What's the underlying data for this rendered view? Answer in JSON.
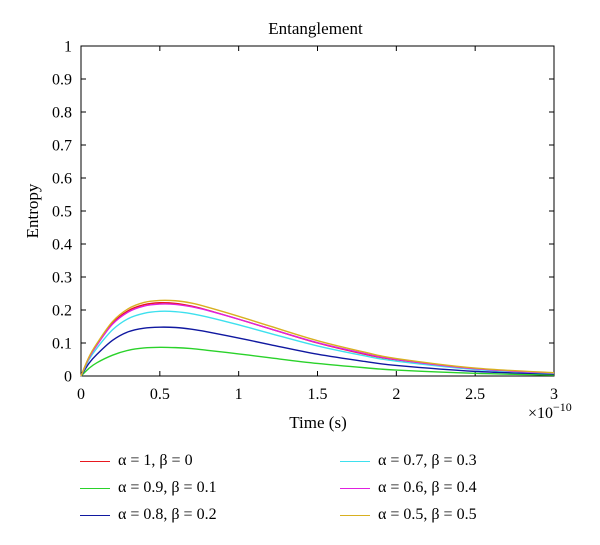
{
  "chart_data": {
    "type": "line",
    "title": "Entanglement",
    "xlabel": "Time (s)",
    "ylabel": "Entropy",
    "x_multiplier": "×10",
    "x_multiplier_exp": "−10",
    "xlim": [
      0,
      3
    ],
    "ylim": [
      0,
      1
    ],
    "grid": false,
    "legend_position": "bottom",
    "xticks": [
      "0",
      "0.5",
      "1",
      "1.5",
      "2",
      "2.5",
      "3"
    ],
    "yticks": [
      "0",
      "0.1",
      "0.2",
      "0.3",
      "0.4",
      "0.5",
      "0.6",
      "0.7",
      "0.8",
      "0.9",
      "1"
    ],
    "x": [
      0,
      0.05,
      0.1,
      0.2,
      0.3,
      0.4,
      0.5,
      0.6,
      0.7,
      0.8,
      1.0,
      1.2,
      1.5,
      1.8,
      2.0,
      2.5,
      3.0
    ],
    "series": [
      {
        "name": "α = 1, β = 0",
        "color": "#e8181f",
        "values": [
          0,
          0.055,
          0.095,
          0.16,
          0.198,
          0.216,
          0.222,
          0.22,
          0.212,
          0.2,
          0.172,
          0.143,
          0.1,
          0.066,
          0.049,
          0.022,
          0.009
        ]
      },
      {
        "name": "α = 0.9, β = 0.1",
        "color": "#2ad22a",
        "values": [
          0,
          0.023,
          0.04,
          0.063,
          0.078,
          0.085,
          0.087,
          0.086,
          0.083,
          0.078,
          0.067,
          0.055,
          0.038,
          0.025,
          0.018,
          0.008,
          0.003
        ]
      },
      {
        "name": "α = 0.8, β = 0.2",
        "color": "#1018a0",
        "values": [
          0,
          0.038,
          0.065,
          0.108,
          0.134,
          0.145,
          0.148,
          0.147,
          0.142,
          0.134,
          0.115,
          0.095,
          0.066,
          0.044,
          0.032,
          0.014,
          0.006
        ]
      },
      {
        "name": "α = 0.7, β = 0.3",
        "color": "#3ee0ee",
        "values": [
          0,
          0.049,
          0.084,
          0.14,
          0.174,
          0.19,
          0.196,
          0.195,
          0.189,
          0.179,
          0.155,
          0.129,
          0.091,
          0.061,
          0.045,
          0.02,
          0.008
        ]
      },
      {
        "name": "α = 0.6, β = 0.4",
        "color": "#e020e0",
        "values": [
          0,
          0.054,
          0.093,
          0.157,
          0.194,
          0.212,
          0.218,
          0.217,
          0.21,
          0.199,
          0.172,
          0.143,
          0.101,
          0.068,
          0.05,
          0.022,
          0.009
        ]
      },
      {
        "name": "α = 0.5, β = 0.5",
        "color": "#d8b020",
        "values": [
          0,
          0.057,
          0.098,
          0.165,
          0.204,
          0.223,
          0.229,
          0.228,
          0.221,
          0.209,
          0.181,
          0.151,
          0.107,
          0.072,
          0.053,
          0.024,
          0.01
        ]
      }
    ]
  }
}
